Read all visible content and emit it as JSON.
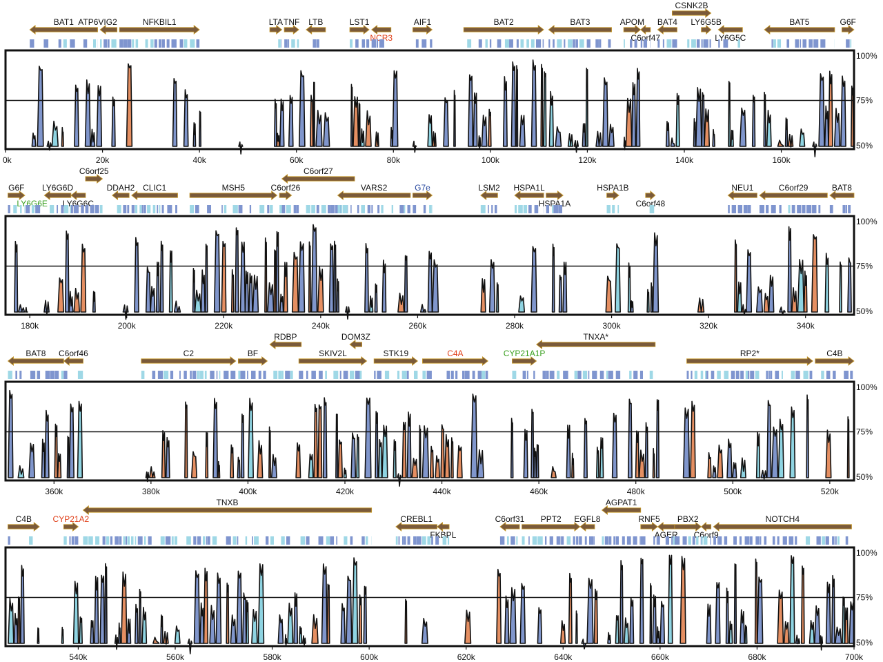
{
  "colors": {
    "default_label": "#111111",
    "red_label": "#e0401a",
    "green_label": "#3aa020",
    "blue_label": "#2a4aa0",
    "arrow_fill": "#7a5a3a",
    "arrow_edge": "#c89a2a",
    "exon_dark": "#7f95cf",
    "exon_light": "#9fd8e6",
    "peak_blue": "#8096cc",
    "peak_orange": "#e58f62",
    "peak_cyan": "#8fd4e2",
    "outline": "#111111"
  },
  "percent_labels": [
    "100%",
    "75%",
    "50%"
  ],
  "panels": [
    {
      "id": "panel-1",
      "start_k": 0,
      "end_k": 175,
      "ticks": [
        {
          "k": 0,
          "label": "0k"
        },
        {
          "k": 20,
          "label": "20k"
        },
        {
          "k": 40,
          "label": "40k"
        },
        {
          "k": 60,
          "label": "60k"
        },
        {
          "k": 80,
          "label": "80k"
        },
        {
          "k": 100,
          "label": "100k"
        },
        {
          "k": 120,
          "label": "120k"
        },
        {
          "k": 140,
          "label": "140k"
        },
        {
          "k": 160,
          "label": "160k"
        }
      ],
      "genes": [
        {
          "name": "BAT1",
          "start": 5,
          "end": 19,
          "dir": "left",
          "row": 0
        },
        {
          "name": "ATP6VIG2",
          "start": 19.5,
          "end": 23,
          "dir": "left",
          "row": 0,
          "label_at": 19
        },
        {
          "name": "NFKBIL1",
          "start": 23.5,
          "end": 40,
          "dir": "right",
          "row": 0
        },
        {
          "name": "LTA",
          "start": 54.5,
          "end": 57,
          "dir": "right",
          "row": 0
        },
        {
          "name": "TNF",
          "start": 57.5,
          "end": 60.5,
          "dir": "right",
          "row": 0
        },
        {
          "name": "LTB",
          "start": 62,
          "end": 66,
          "dir": "left",
          "row": 0
        },
        {
          "name": "LST1",
          "start": 71,
          "end": 75,
          "dir": "right",
          "row": 0
        },
        {
          "name": "NCR3",
          "start": 75.5,
          "end": 79.5,
          "dir": "left",
          "row": 0,
          "label_row": 1,
          "color": "red"
        },
        {
          "name": "AIF1",
          "start": 84,
          "end": 88,
          "dir": "right",
          "row": 0
        },
        {
          "name": "BAT2",
          "start": 94.5,
          "end": 111,
          "dir": "right",
          "row": 0
        },
        {
          "name": "BAT3",
          "start": 112,
          "end": 125,
          "dir": "left",
          "row": 0
        },
        {
          "name": "APOM",
          "start": 127.5,
          "end": 131,
          "dir": "right",
          "row": 0
        },
        {
          "name": "C6orf47",
          "start": 131,
          "end": 133,
          "dir": "left",
          "row": 0,
          "label_row": 1
        },
        {
          "name": "BAT4",
          "start": 134.5,
          "end": 138.5,
          "dir": "left",
          "row": 0
        },
        {
          "name": "CSNK2B",
          "start": 137.5,
          "end": 145.5,
          "dir": "right",
          "row": -1
        },
        {
          "name": "LY6G5B",
          "start": 143.5,
          "end": 145.5,
          "dir": "right",
          "row": 0
        },
        {
          "name": "LY6G5C",
          "start": 147,
          "end": 152,
          "dir": "left",
          "row": 0,
          "label_row": 1
        },
        {
          "name": "BAT5",
          "start": 156.5,
          "end": 171,
          "dir": "left",
          "row": 0
        },
        {
          "name": "G6F",
          "start": 172.5,
          "end": 175,
          "dir": "right",
          "row": 0
        }
      ]
    },
    {
      "id": "panel-2",
      "start_k": 175,
      "end_k": 350,
      "ticks": [
        {
          "k": 180,
          "label": "180k"
        },
        {
          "k": 200,
          "label": "200k"
        },
        {
          "k": 220,
          "label": "220k"
        },
        {
          "k": 240,
          "label": "240k"
        },
        {
          "k": 260,
          "label": "260k"
        },
        {
          "k": 280,
          "label": "280k"
        },
        {
          "k": 300,
          "label": "300k"
        },
        {
          "k": 320,
          "label": "320k"
        },
        {
          "k": 340,
          "label": "340k"
        }
      ],
      "genes": [
        {
          "name": "G6F",
          "start": 175.5,
          "end": 179,
          "dir": "right",
          "row": 0
        },
        {
          "name": "LY6G6E",
          "start": 178,
          "end": 183,
          "dir": "none",
          "row": 0,
          "label_row": 1,
          "color": "green"
        },
        {
          "name": "LY6G6D",
          "start": 183,
          "end": 188.5,
          "dir": "left",
          "row": 0
        },
        {
          "name": "LY6G6C",
          "start": 188.5,
          "end": 191.5,
          "dir": "left",
          "row": 0,
          "label_row": 1
        },
        {
          "name": "C6orf25",
          "start": 191.5,
          "end": 195,
          "dir": "right",
          "row": -1
        },
        {
          "name": "DDAH2",
          "start": 197,
          "end": 200.5,
          "dir": "left",
          "row": 0
        },
        {
          "name": "CLIC1",
          "start": 201,
          "end": 210.5,
          "dir": "left",
          "row": 0
        },
        {
          "name": "MSH5",
          "start": 213,
          "end": 231,
          "dir": "right",
          "row": 0
        },
        {
          "name": "C6orf26",
          "start": 231.5,
          "end": 234,
          "dir": "right",
          "row": 0
        },
        {
          "name": "C6orf27",
          "start": 232,
          "end": 247,
          "dir": "left",
          "row": -1
        },
        {
          "name": "VARS2",
          "start": 243.5,
          "end": 258.5,
          "dir": "left",
          "row": 0
        },
        {
          "name": "G7e",
          "start": 259,
          "end": 263,
          "dir": "right",
          "row": 0,
          "color": "blue"
        },
        {
          "name": "LSM2",
          "start": 273,
          "end": 276.5,
          "dir": "left",
          "row": 0
        },
        {
          "name": "HSPA1L",
          "start": 280,
          "end": 286,
          "dir": "left",
          "row": 0
        },
        {
          "name": "HSPA1A",
          "start": 286.5,
          "end": 290,
          "dir": "right",
          "row": 0,
          "label_row": 1
        },
        {
          "name": "HSPA1B",
          "start": 299,
          "end": 301.5,
          "dir": "right",
          "row": 0
        },
        {
          "name": "C6orf48",
          "start": 307,
          "end": 309,
          "dir": "right",
          "row": 0,
          "label_row": 1
        },
        {
          "name": "NEU1",
          "start": 324,
          "end": 330,
          "dir": "left",
          "row": 0
        },
        {
          "name": "C6orf29",
          "start": 330.5,
          "end": 344.5,
          "dir": "left",
          "row": 0
        },
        {
          "name": "BAT8",
          "start": 345,
          "end": 350,
          "dir": "left",
          "row": 0
        }
      ]
    },
    {
      "id": "panel-3",
      "start_k": 350,
      "end_k": 525,
      "ticks": [
        {
          "k": 360,
          "label": "360k"
        },
        {
          "k": 380,
          "label": "380k"
        },
        {
          "k": 400,
          "label": "400k"
        },
        {
          "k": 420,
          "label": "420k"
        },
        {
          "k": 440,
          "label": "440k"
        },
        {
          "k": 460,
          "label": "460k"
        },
        {
          "k": 480,
          "label": "480k"
        },
        {
          "k": 500,
          "label": "500k"
        },
        {
          "k": 520,
          "label": "520k"
        }
      ],
      "genes": [
        {
          "name": "BAT8",
          "start": 350.5,
          "end": 362,
          "dir": "left",
          "row": 0
        },
        {
          "name": "C6orf46",
          "start": 362,
          "end": 366,
          "dir": "left",
          "row": 0
        },
        {
          "name": "C2",
          "start": 378,
          "end": 397.5,
          "dir": "right",
          "row": 0
        },
        {
          "name": "BF",
          "start": 398,
          "end": 404,
          "dir": "right",
          "row": 0
        },
        {
          "name": "RDBP",
          "start": 404.5,
          "end": 411,
          "dir": "left",
          "row": -1
        },
        {
          "name": "SKIV2L",
          "start": 410.5,
          "end": 424.5,
          "dir": "right",
          "row": 0
        },
        {
          "name": "DOM3Z",
          "start": 421,
          "end": 423.5,
          "dir": "left",
          "row": -1
        },
        {
          "name": "STK19",
          "start": 426,
          "end": 435,
          "dir": "right",
          "row": 0
        },
        {
          "name": "C4A",
          "start": 436,
          "end": 449.5,
          "dir": "right",
          "row": 0,
          "color": "red"
        },
        {
          "name": "CYP21A1P",
          "start": 454.5,
          "end": 459.5,
          "dir": "right",
          "row": 0,
          "color": "green"
        },
        {
          "name": "TNXA*",
          "start": 459.5,
          "end": 484,
          "dir": "left",
          "row": -1
        },
        {
          "name": "RP2*",
          "start": 490.5,
          "end": 516.5,
          "dir": "right",
          "row": 0
        },
        {
          "name": "C4B",
          "start": 517,
          "end": 525,
          "dir": "right",
          "row": 0
        }
      ]
    },
    {
      "id": "panel-4",
      "start_k": 525,
      "end_k": 700,
      "ticks": [
        {
          "k": 540,
          "label": "540k"
        },
        {
          "k": 560,
          "label": "560k"
        },
        {
          "k": 580,
          "label": "580k"
        },
        {
          "k": 600,
          "label": "600k"
        },
        {
          "k": 620,
          "label": "620k"
        },
        {
          "k": 640,
          "label": "640k"
        },
        {
          "k": 660,
          "label": "660k"
        },
        {
          "k": 680,
          "label": "680k"
        },
        {
          "k": 700,
          "label": "700k"
        }
      ],
      "genes": [
        {
          "name": "C4B",
          "start": 525.5,
          "end": 532,
          "dir": "right",
          "row": 0
        },
        {
          "name": "CYP21A2",
          "start": 537,
          "end": 540,
          "dir": "right",
          "row": 0,
          "color": "red"
        },
        {
          "name": "TNXB",
          "start": 541,
          "end": 600.5,
          "dir": "left",
          "row": -1
        },
        {
          "name": "CREBL1",
          "start": 605.5,
          "end": 614,
          "dir": "left",
          "row": 0
        },
        {
          "name": "FKBPL",
          "start": 614,
          "end": 616.5,
          "dir": "left",
          "row": 0,
          "label_row": 1
        },
        {
          "name": "C6orf31",
          "start": 627,
          "end": 631,
          "dir": "left",
          "row": 0
        },
        {
          "name": "PPT2",
          "start": 631.5,
          "end": 643.5,
          "dir": "right",
          "row": 0
        },
        {
          "name": "EGFL8",
          "start": 643.5,
          "end": 646.5,
          "dir": "left",
          "row": 0
        },
        {
          "name": "AGPAT1",
          "start": 648,
          "end": 656,
          "dir": "left",
          "row": -1
        },
        {
          "name": "RNF5",
          "start": 656,
          "end": 659.5,
          "dir": "right",
          "row": 0
        },
        {
          "name": "AGER",
          "start": 659.5,
          "end": 663,
          "dir": "left",
          "row": 0,
          "label_row": 1
        },
        {
          "name": "PBX2",
          "start": 663,
          "end": 668.5,
          "dir": "right",
          "row": 0
        },
        {
          "name": "C6orf9",
          "start": 668.5,
          "end": 670.5,
          "dir": "left",
          "row": 0,
          "label_row": 1
        },
        {
          "name": "NOTCH4",
          "start": 671,
          "end": 699.5,
          "dir": "left",
          "row": 0
        }
      ]
    }
  ]
}
